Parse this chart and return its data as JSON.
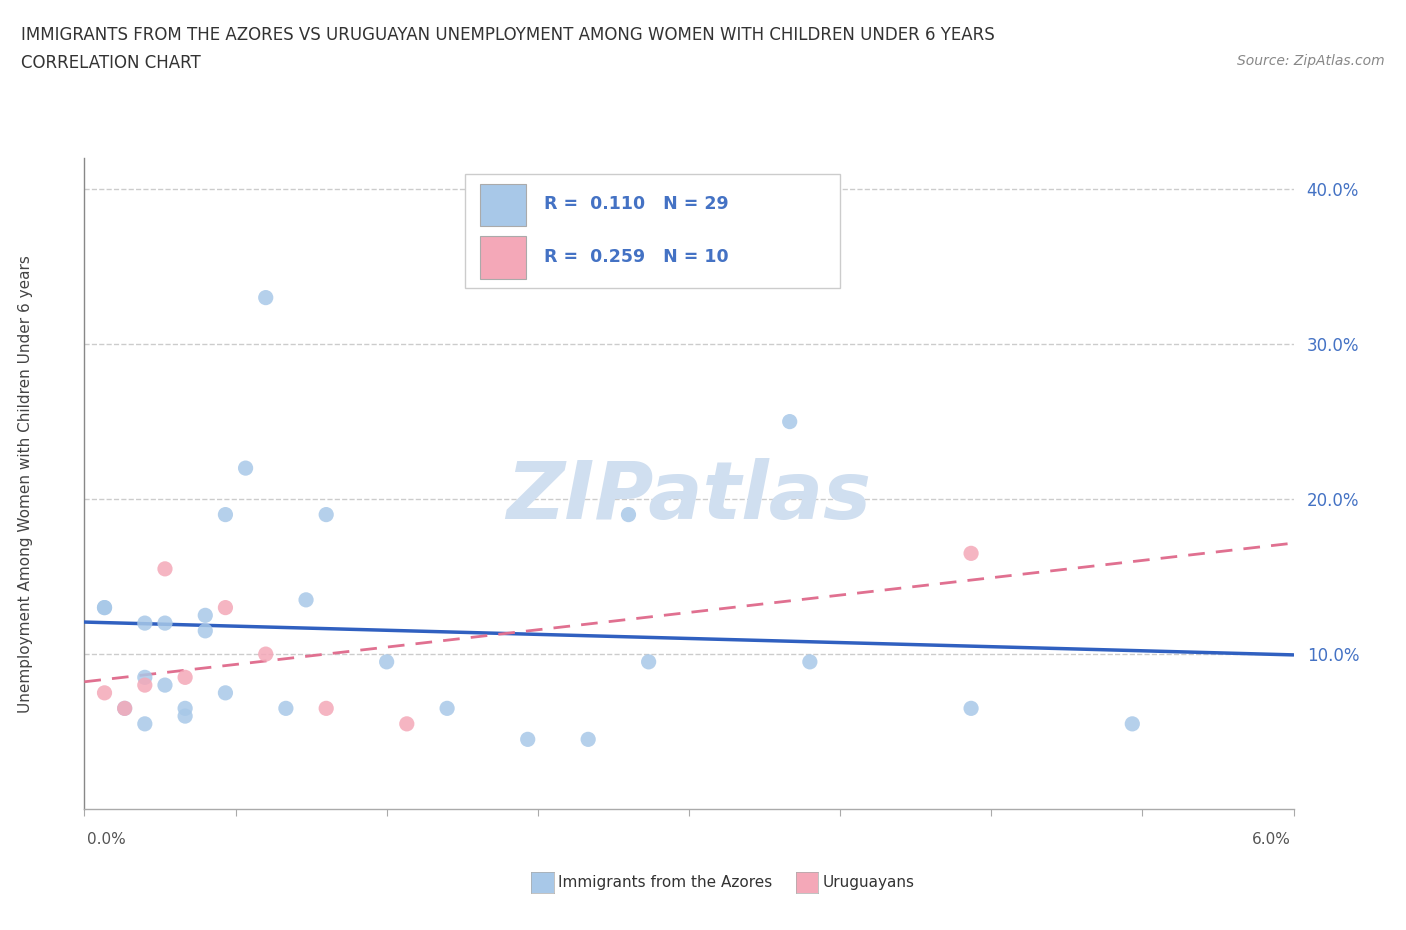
{
  "title1": "IMMIGRANTS FROM THE AZORES VS URUGUAYAN UNEMPLOYMENT AMONG WOMEN WITH CHILDREN UNDER 6 YEARS",
  "title2": "CORRELATION CHART",
  "source": "Source: ZipAtlas.com",
  "ylabel": "Unemployment Among Women with Children Under 6 years",
  "legend1_r": "0.110",
  "legend1_n": "29",
  "legend2_r": "0.259",
  "legend2_n": "10",
  "color_azores": "#a8c8e8",
  "color_uruguayans": "#f4a8b8",
  "color_line_azores": "#3060c0",
  "color_line_uruguayans": "#e07090",
  "color_text_blue": "#4472c4",
  "color_watermark": "#d0dff0",
  "color_grid": "#cccccc",
  "azores_x": [
    0.001,
    0.001,
    0.002,
    0.003,
    0.003,
    0.003,
    0.004,
    0.004,
    0.005,
    0.005,
    0.006,
    0.006,
    0.007,
    0.007,
    0.008,
    0.009,
    0.01,
    0.011,
    0.012,
    0.015,
    0.018,
    0.022,
    0.025,
    0.027,
    0.028,
    0.035,
    0.036,
    0.044,
    0.052
  ],
  "azores_y": [
    0.13,
    0.13,
    0.065,
    0.055,
    0.085,
    0.12,
    0.12,
    0.08,
    0.065,
    0.06,
    0.125,
    0.115,
    0.075,
    0.19,
    0.22,
    0.33,
    0.065,
    0.135,
    0.19,
    0.095,
    0.065,
    0.045,
    0.045,
    0.19,
    0.095,
    0.25,
    0.095,
    0.065,
    0.055
  ],
  "uruguayans_x": [
    0.001,
    0.002,
    0.003,
    0.004,
    0.005,
    0.007,
    0.009,
    0.012,
    0.016,
    0.044
  ],
  "uruguayans_y": [
    0.075,
    0.065,
    0.08,
    0.155,
    0.085,
    0.13,
    0.1,
    0.065,
    0.055,
    0.165
  ],
  "xlim": [
    0.0,
    0.06
  ],
  "ylim": [
    0.0,
    0.42
  ],
  "bg_color": "#ffffff",
  "yticks": [
    0.1,
    0.2,
    0.3,
    0.4
  ],
  "ytick_labels": [
    "10.0%",
    "20.0%",
    "30.0%",
    "40.0%"
  ]
}
